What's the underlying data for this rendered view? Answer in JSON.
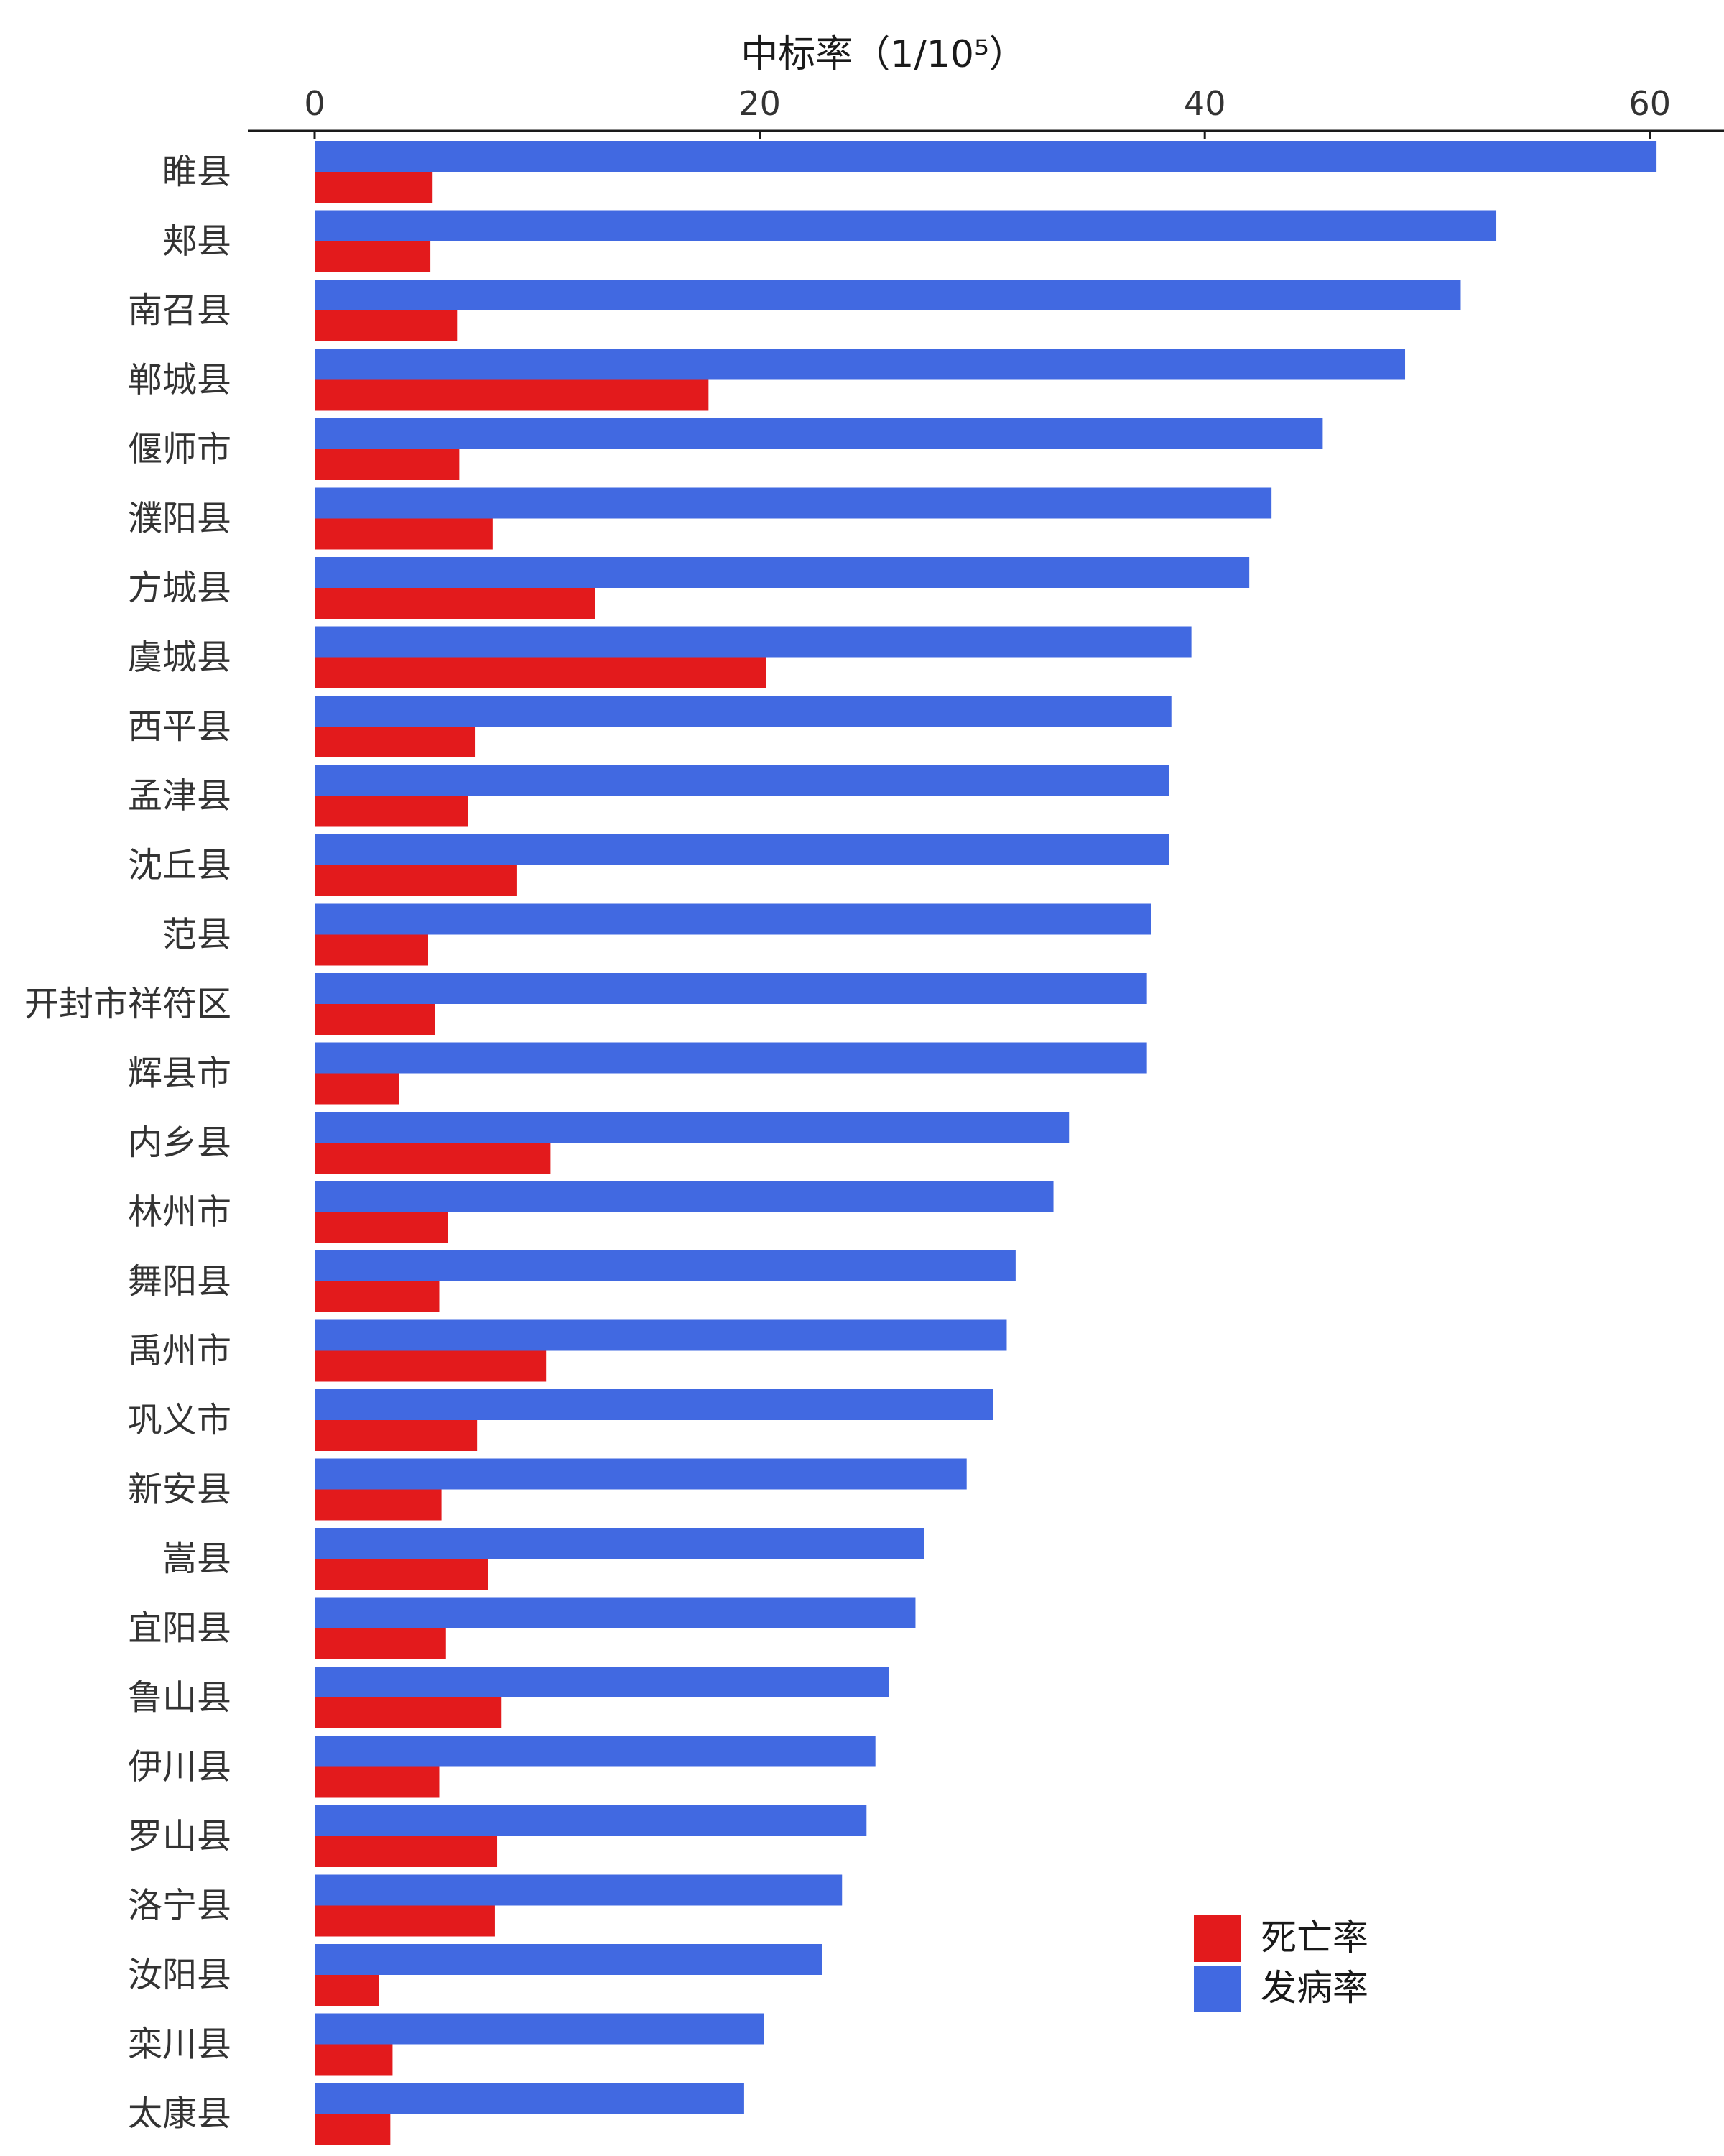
{
  "chart_data": {
    "type": "bar",
    "orientation": "horizontal",
    "title": "",
    "xlabel": "中标率（1/10⁵）",
    "ylabel": "",
    "xlim": [
      0,
      63
    ],
    "xticks": [
      0,
      20,
      40,
      60
    ],
    "axis_position": "top",
    "grid": false,
    "legend_position": "bottom-right",
    "categories": [
      "睢县",
      "郏县",
      "南召县",
      "郸城县",
      "偃师市",
      "濮阳县",
      "方城县",
      "虞城县",
      "西平县",
      "孟津县",
      "沈丘县",
      "范县",
      "开封市祥符区",
      "辉县市",
      "内乡县",
      "林州市",
      "舞阳县",
      "禹州市",
      "巩义市",
      "新安县",
      "嵩县",
      "宜阳县",
      "鲁山县",
      "伊川县",
      "罗山县",
      "洛宁县",
      "汝阳县",
      "栾川县",
      "太康县"
    ],
    "series": [
      {
        "name": "发病率",
        "color": "#4169E1",
        "values": [
          60.3,
          53.1,
          51.5,
          49.0,
          45.3,
          43.0,
          42.0,
          39.4,
          38.5,
          38.4,
          38.4,
          37.6,
          37.4,
          37.4,
          33.9,
          33.2,
          31.5,
          31.1,
          30.5,
          29.3,
          27.4,
          27.0,
          25.8,
          25.2,
          24.8,
          23.7,
          22.8,
          20.2,
          19.3
        ]
      },
      {
        "name": "死亡率",
        "color": "#E31A1C",
        "values": [
          5.3,
          5.2,
          6.4,
          17.7,
          6.5,
          8.0,
          12.6,
          20.3,
          7.2,
          6.9,
          9.1,
          5.1,
          5.4,
          3.8,
          10.6,
          6.0,
          5.6,
          10.4,
          7.3,
          5.7,
          7.8,
          5.9,
          8.4,
          5.6,
          8.2,
          8.1,
          2.9,
          3.5,
          3.4
        ]
      }
    ]
  }
}
